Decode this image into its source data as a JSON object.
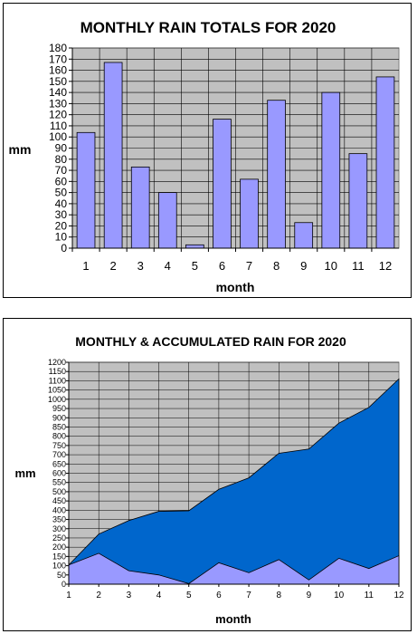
{
  "chart_data": [
    {
      "type": "bar",
      "title": "MONTHLY RAIN TOTALS FOR 2020",
      "xlabel": "month",
      "ylabel": "mm",
      "ylim": [
        0,
        180
      ],
      "ytick_step": 10,
      "grid": true,
      "legend": "none",
      "categories": [
        "1",
        "2",
        "3",
        "4",
        "5",
        "6",
        "7",
        "8",
        "9",
        "10",
        "11",
        "12"
      ],
      "values": [
        104,
        167,
        73,
        50,
        3,
        116,
        62,
        133,
        23,
        140,
        85,
        154
      ],
      "colors": {
        "bar": "#9999ff",
        "plot_bg": "#c0c0c0",
        "grid": "#000000"
      }
    },
    {
      "type": "area",
      "title": "MONTHLY & ACCUMULATED RAIN FOR 2020",
      "xlabel": "month",
      "ylabel": "mm",
      "ylim": [
        0,
        1200
      ],
      "ytick_step": 50,
      "grid": true,
      "legend": "none",
      "x": [
        "1",
        "2",
        "3",
        "4",
        "5",
        "6",
        "7",
        "8",
        "9",
        "10",
        "11",
        "12"
      ],
      "series": [
        {
          "values": [
            104,
            167,
            73,
            50,
            3,
            116,
            62,
            133,
            23,
            140,
            85,
            154
          ],
          "color": "#9999ff"
        },
        {
          "values": [
            104,
            271,
            344,
            394,
            397,
            513,
            575,
            708,
            731,
            871,
            956,
            1110
          ],
          "color": "#0066cc"
        }
      ],
      "colors": {
        "plot_bg": "#c0c0c0",
        "grid": "#000000"
      }
    }
  ]
}
